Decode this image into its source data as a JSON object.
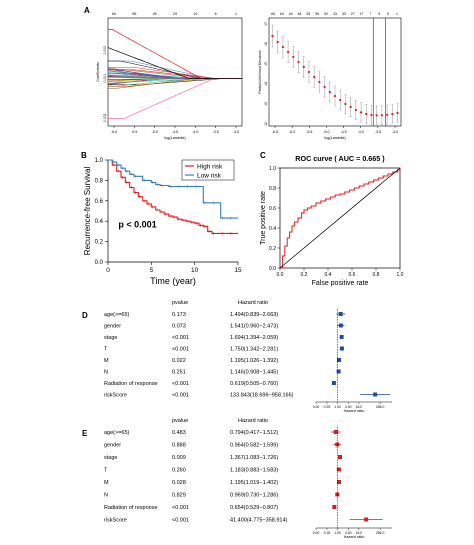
{
  "panels": {
    "a": {
      "label": "A",
      "left": {
        "xlabel": "log(Lambda)",
        "ylabel": "Coefficients",
        "top_ticks": [
          "64",
          "65",
          "45",
          "29",
          "19",
          "6",
          "1"
        ],
        "bottom_ticks": [
          "-6.0",
          "-5.5",
          "-5.0",
          "-4.5",
          "-4.0",
          "-3.5",
          "-3.0"
        ],
        "y_ticks": [
          "0.002",
          "-0.001",
          "-0.002"
        ]
      },
      "right": {
        "xlabel": "log(Lambda)",
        "ylabel": "Partial Likelihood Deviance",
        "top_ticks": [
          "65",
          "64",
          "64",
          "64",
          "63",
          "55",
          "52",
          "43",
          "33",
          "27",
          "17",
          "7",
          "5",
          "5",
          "1"
        ],
        "bottom_ticks": [
          "-6.5",
          "-6.0",
          "-5.5",
          "-5.0",
          "-4.5",
          "-4.0",
          "-3.5",
          "-3.0"
        ],
        "y_ticks": [
          "12",
          "13",
          "14",
          "15",
          "16",
          "17"
        ]
      }
    },
    "b": {
      "label": "B",
      "annotation": "p < 0.001",
      "legend": [
        "High risk",
        "Low risk"
      ]
    },
    "c": {
      "label": "C",
      "title": "ROC curve ( AUC =  0.665 )"
    },
    "d": {
      "label": "D",
      "header_pvalue": "pvalue",
      "header_hr": "Hazard ratio",
      "axis_label": "Hazard ratio",
      "rows": [
        {
          "name": "age(>=65)",
          "pvalue": "0.173",
          "hr": "1.494(0.839−2.663)"
        },
        {
          "name": "gender",
          "pvalue": "0.073",
          "hr": "1.541(0.960−2.473)"
        },
        {
          "name": "stage",
          "pvalue": "<0.001",
          "hr": "1.694(1.394−2.059)"
        },
        {
          "name": "T",
          "pvalue": "<0.001",
          "hr": "1.750(1.342−2.281)"
        },
        {
          "name": "M",
          "pvalue": "0.022",
          "hr": "1.195(1.026−1.392)"
        },
        {
          "name": "N",
          "pvalue": "0.251",
          "hr": "1.146(0.908−1.445)"
        },
        {
          "name": "Radiation of response",
          "pvalue": "<0.001",
          "hr": "0.619(0.505−0.760)"
        },
        {
          "name": "riskScore",
          "pvalue": "<0.001",
          "hr": "133.843(18.696−958.166)"
        }
      ]
    },
    "e": {
      "label": "E",
      "header_pvalue": "pvalue",
      "header_hr": "Hazard ratio",
      "axis_label": "Hazard ratio",
      "rows": [
        {
          "name": "age(>=65)",
          "pvalue": "0.483",
          "hr": "0.794(0.417−1.512)"
        },
        {
          "name": "gender",
          "pvalue": "0.888",
          "hr": "0.964(0.582−1.599)"
        },
        {
          "name": "stage",
          "pvalue": "0.009",
          "hr": "1.367(1.083−1.726)"
        },
        {
          "name": "T",
          "pvalue": "0.260",
          "hr": "1.183(0.883−1.583)"
        },
        {
          "name": "M",
          "pvalue": "0.028",
          "hr": "1.195(1.019−1.402)"
        },
        {
          "name": "N",
          "pvalue": "0.829",
          "hr": "0.969(0.730−1.286)"
        },
        {
          "name": "Radiation of response",
          "pvalue": "<0.001",
          "hr": "0.654(0.529−0.807)"
        },
        {
          "name": "riskScore",
          "pvalue": "<0.001",
          "hr": "41.400(4.775−358.914)"
        }
      ]
    }
  },
  "chart_data": [
    {
      "type": "line",
      "panel": "A-left",
      "xlabel": "log(Lambda)",
      "ylabel": "Coefficients",
      "xlim": [
        -6.2,
        -2.9
      ],
      "ylim": [
        -0.0025,
        0.0032
      ]
    },
    {
      "type": "scatter",
      "panel": "A-right",
      "xlabel": "log(Lambda)",
      "ylabel": "Partial Likelihood Deviance",
      "xlim": [
        -6.7,
        -2.9
      ],
      "ylim": [
        11.9,
        17.3
      ],
      "vlines": [
        -3.7,
        -3.35
      ],
      "x": [
        -6.6,
        -6.45,
        -6.3,
        -6.15,
        -6.0,
        -5.85,
        -5.7,
        -5.55,
        -5.4,
        -5.25,
        -5.1,
        -4.95,
        -4.8,
        -4.65,
        -4.5,
        -4.35,
        -4.2,
        -4.05,
        -3.9,
        -3.75,
        -3.6,
        -3.45,
        -3.3,
        -3.15,
        -3.0
      ],
      "y": [
        16.4,
        16.1,
        15.85,
        15.6,
        15.35,
        15.1,
        14.85,
        14.6,
        14.35,
        14.1,
        13.85,
        13.6,
        13.4,
        13.2,
        13.0,
        12.85,
        12.7,
        12.58,
        12.5,
        12.45,
        12.43,
        12.44,
        12.46,
        12.5,
        12.55
      ],
      "err": [
        0.55,
        0.55,
        0.55,
        0.54,
        0.54,
        0.53,
        0.53,
        0.52,
        0.52,
        0.51,
        0.51,
        0.5,
        0.5,
        0.5,
        0.49,
        0.49,
        0.48,
        0.48,
        0.48,
        0.47,
        0.47,
        0.47,
        0.47,
        0.47,
        0.47
      ]
    },
    {
      "type": "line",
      "panel": "B",
      "title": "",
      "xlabel": "Time (year)",
      "ylabel": "Recurrence-free Survival",
      "xlim": [
        0,
        15
      ],
      "ylim": [
        0,
        1
      ],
      "xticks": [
        0,
        5,
        10,
        15
      ],
      "yticks": [
        0.0,
        0.2,
        0.4,
        0.6,
        0.8,
        1.0
      ],
      "legend_position": "top-right",
      "series": [
        {
          "name": "High risk",
          "color": "#e41a1c",
          "x": [
            0,
            0.5,
            1,
            1.5,
            2,
            2.5,
            3,
            3.5,
            4,
            4.5,
            5,
            5.5,
            6,
            6.5,
            7,
            7.5,
            8,
            8.5,
            9,
            9.5,
            10,
            10.5,
            11,
            11.5,
            12,
            13,
            14,
            15
          ],
          "y": [
            1,
            0.95,
            0.89,
            0.83,
            0.78,
            0.73,
            0.68,
            0.64,
            0.6,
            0.57,
            0.54,
            0.51,
            0.49,
            0.47,
            0.45,
            0.44,
            0.42,
            0.41,
            0.4,
            0.39,
            0.38,
            0.36,
            0.35,
            0.3,
            0.28,
            0.28,
            0.28,
            0.28
          ]
        },
        {
          "name": "Low risk",
          "color": "#377eb8",
          "x": [
            0,
            0.5,
            1,
            1.5,
            2,
            2.5,
            3,
            4,
            5,
            5.5,
            6,
            7,
            8,
            9,
            10,
            11,
            12,
            13,
            14,
            15
          ],
          "y": [
            1,
            0.98,
            0.95,
            0.92,
            0.89,
            0.86,
            0.84,
            0.8,
            0.78,
            0.76,
            0.75,
            0.74,
            0.74,
            0.74,
            0.74,
            0.58,
            0.58,
            0.43,
            0.43,
            0.43
          ]
        }
      ]
    },
    {
      "type": "line",
      "panel": "C",
      "title": "ROC curve ( AUC =  0.665 )",
      "xlabel": "False positive rate",
      "ylabel": "True positive rate",
      "xlim": [
        0,
        1
      ],
      "ylim": [
        0,
        1
      ],
      "xticks": [
        0.0,
        0.2,
        0.4,
        0.6,
        0.8,
        1.0
      ],
      "yticks": [
        0.0,
        0.2,
        0.4,
        0.6,
        0.8,
        1.0
      ],
      "series": [
        {
          "name": "",
          "color": "#e41a1c",
          "x": [
            0,
            0.02,
            0.04,
            0.06,
            0.08,
            0.1,
            0.12,
            0.15,
            0.18,
            0.2,
            0.23,
            0.26,
            0.3,
            0.34,
            0.38,
            0.42,
            0.46,
            0.5,
            0.54,
            0.58,
            0.62,
            0.66,
            0.7,
            0.74,
            0.78,
            0.82,
            0.86,
            0.9,
            0.94,
            0.98,
            1
          ],
          "y": [
            0,
            0.12,
            0.22,
            0.3,
            0.36,
            0.42,
            0.46,
            0.5,
            0.55,
            0.58,
            0.6,
            0.62,
            0.65,
            0.67,
            0.69,
            0.71,
            0.73,
            0.74,
            0.76,
            0.78,
            0.8,
            0.82,
            0.84,
            0.86,
            0.88,
            0.9,
            0.92,
            0.94,
            0.96,
            0.98,
            1
          ]
        },
        {
          "name": "",
          "color": "#000000",
          "x": [
            0,
            1
          ],
          "y": [
            0,
            1
          ]
        }
      ]
    },
    {
      "type": "scatter",
      "panel": "D",
      "title": "",
      "xlabel": "Hazard ratio",
      "xscale": "log",
      "xticks": [
        "0.00",
        "0.25",
        "1.00",
        "4.00",
        "16.0",
        "256.0"
      ],
      "color": "#1f4e9c",
      "categories": [
        "age(>=65)",
        "gender",
        "stage",
        "T",
        "M",
        "N",
        "Radiation of response",
        "riskScore"
      ],
      "hr": [
        1.494,
        1.541,
        1.694,
        1.75,
        1.195,
        1.146,
        0.619,
        133.843
      ],
      "lower": [
        0.839,
        0.96,
        1.394,
        1.342,
        1.026,
        0.908,
        0.505,
        18.696
      ],
      "upper": [
        2.663,
        2.473,
        2.059,
        2.281,
        1.392,
        1.445,
        0.76,
        958.166
      ]
    },
    {
      "type": "scatter",
      "panel": "E",
      "title": "",
      "xlabel": "Hazard ratio",
      "xscale": "log",
      "xticks": [
        "0.00",
        "0.25",
        "1.00",
        "4.00",
        "16.0",
        "256.0"
      ],
      "color": "#cc2222",
      "categories": [
        "age(>=65)",
        "gender",
        "stage",
        "T",
        "M",
        "N",
        "Radiation of response",
        "riskScore"
      ],
      "hr": [
        0.794,
        0.964,
        1.367,
        1.183,
        1.195,
        0.969,
        0.654,
        41.4
      ],
      "lower": [
        0.417,
        0.582,
        1.083,
        0.883,
        1.019,
        0.73,
        0.529,
        4.775
      ],
      "upper": [
        1.512,
        1.599,
        1.726,
        1.583,
        1.402,
        1.286,
        0.807,
        358.914
      ]
    }
  ]
}
